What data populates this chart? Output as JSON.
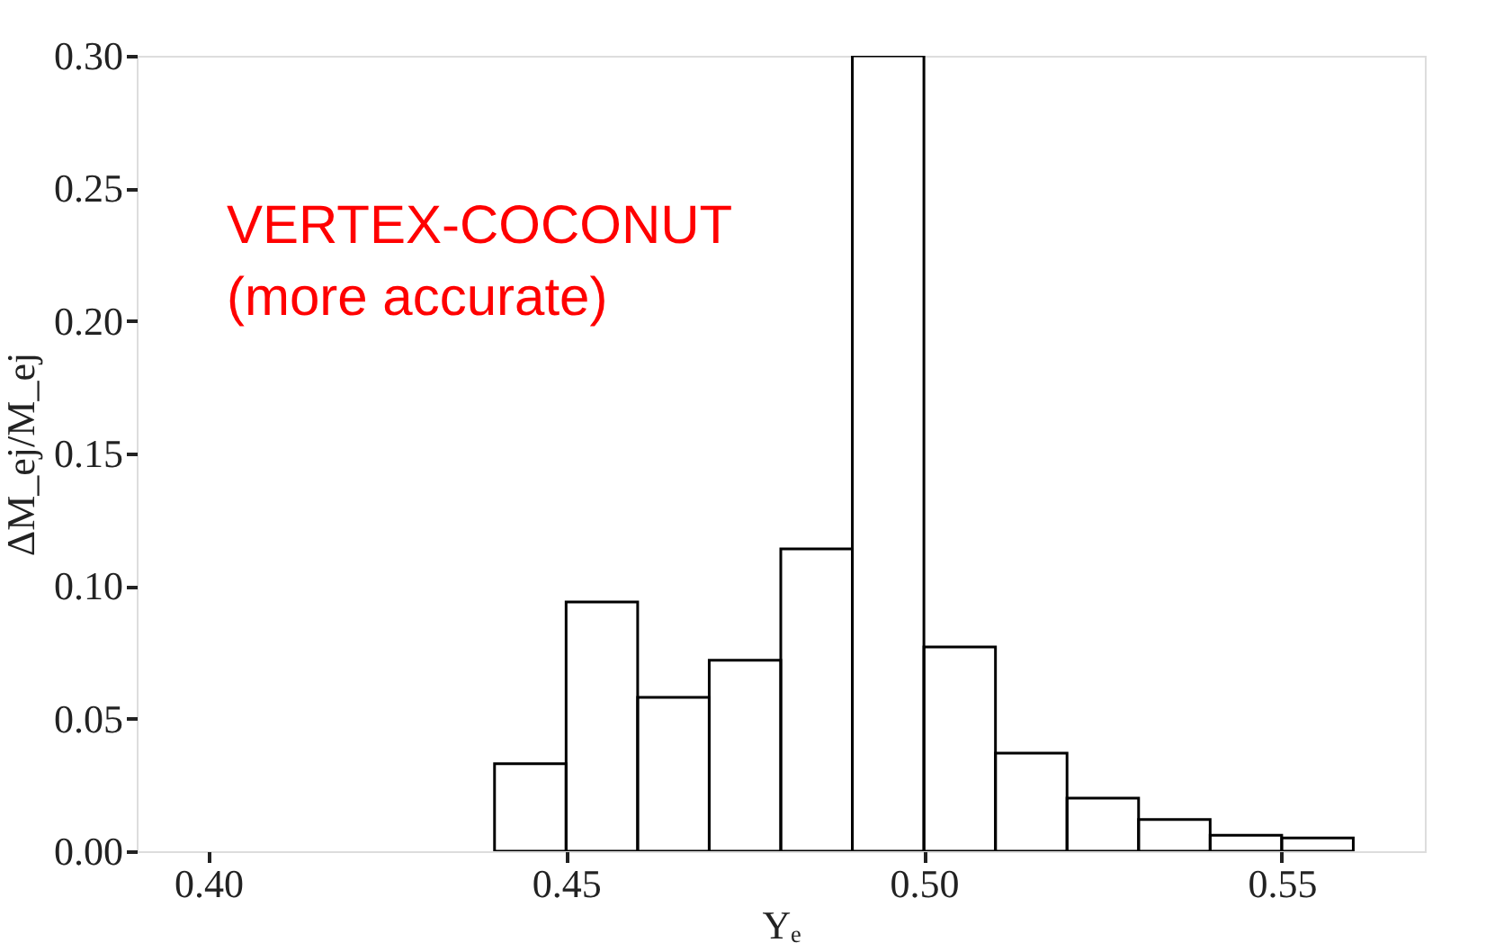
{
  "chart_data": {
    "type": "histogram",
    "xlabel": "Yₑ",
    "ylabel": "ΔM_ej/M_ej",
    "bins": [
      0.44,
      0.45,
      0.46,
      0.47,
      0.48,
      0.49,
      0.5,
      0.51,
      0.52,
      0.53,
      0.54,
      0.55,
      0.56
    ],
    "values": [
      0.033,
      0.094,
      0.058,
      0.072,
      0.114,
      0.3,
      0.077,
      0.037,
      0.02,
      0.012,
      0.006,
      0.005
    ],
    "color": "#000000",
    "xlim": [
      0.39,
      0.57
    ],
    "xticks": [
      {
        "value": 0.4,
        "label": "0.40"
      },
      0.45,
      {
        "value": 0.5,
        "label": "0.50"
      },
      0.55
    ],
    "ylim": [
      0,
      0.3
    ],
    "yticks": [
      {
        "value": 0,
        "label": "0.00"
      },
      0.05,
      {
        "value": 0.1,
        "label": "0.10"
      },
      0.15,
      {
        "value": 0.2,
        "label": "0.20"
      },
      0.25,
      {
        "value": 0.3,
        "label": "0.30"
      }
    ],
    "annotations": [
      "VERTEX-COCONUT\n(more accurate)"
    ],
    "grid": false
  }
}
